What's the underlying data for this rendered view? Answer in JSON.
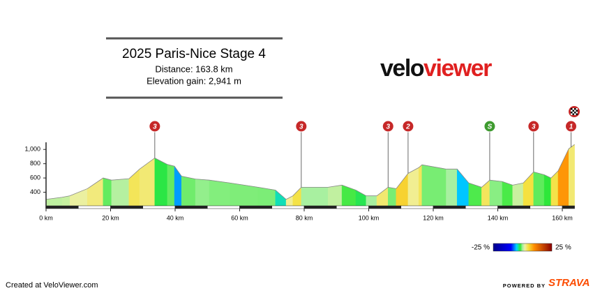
{
  "header": {
    "title": "2025 Paris-Nice Stage 4",
    "distance": "Distance: 163.8 km",
    "gain": "Elevation gain: 2,941 m"
  },
  "logo": {
    "part1": "velo",
    "part2": "viewer"
  },
  "chart_data": {
    "type": "elevation-profile",
    "x": [
      0,
      5,
      7.4,
      12.8,
      17.7,
      20.3,
      25.7,
      29,
      33.7,
      37.6,
      39.8,
      42,
      46.3,
      50.6,
      57,
      65.7,
      71.1,
      74.4,
      76.5,
      79.1,
      87.4,
      91.7,
      96,
      99.2,
      102.5,
      106,
      108.5,
      112.2,
      115.5,
      116.5,
      124,
      127.4,
      131,
      135,
      137.5,
      141.4,
      144.6,
      147.9,
      151.1,
      154.4,
      156.5,
      158.7,
      162,
      163.8
    ],
    "values": [
      300,
      330,
      350,
      450,
      600,
      570,
      590,
      725,
      880,
      790,
      765,
      625,
      585,
      570,
      530,
      470,
      430,
      300,
      350,
      470,
      470,
      500,
      430,
      350,
      350,
      470,
      450,
      665,
      745,
      785,
      725,
      725,
      530,
      470,
      570,
      550,
      500,
      530,
      685,
      645,
      600,
      700,
      1010,
      1070
    ],
    "xlim": [
      0,
      160
    ],
    "xticks": [
      {
        "value": 0,
        "label": "0 km"
      },
      {
        "value": 20,
        "label": "20 km"
      },
      {
        "value": 40,
        "label": "40 km"
      },
      {
        "value": 60,
        "label": "60 km"
      },
      {
        "value": 80,
        "label": "80 km"
      },
      {
        "value": 100,
        "label": "100 km"
      },
      {
        "value": 120,
        "label": "120 km"
      },
      {
        "value": 140,
        "label": "140 km"
      },
      {
        "value": 160,
        "label": "160 km"
      }
    ],
    "ylim": [
      200,
      1100
    ],
    "yticks": [
      400,
      600,
      800,
      {
        "value": 1000,
        "label": "1,000"
      }
    ],
    "climbs": [
      {
        "x": 33.7,
        "label": "3",
        "color": "#c62828"
      },
      {
        "x": 79.1,
        "label": "3",
        "color": "#c62828"
      },
      {
        "x": 106,
        "label": "3",
        "color": "#c62828"
      },
      {
        "x": 112.2,
        "label": "2",
        "color": "#c62828"
      },
      {
        "x": 137.5,
        "label": "S",
        "color": "#3e9b2f"
      },
      {
        "x": 151.1,
        "label": "3",
        "color": "#c62828"
      },
      {
        "x": 162.7,
        "label": "1",
        "color": "#c62828"
      }
    ],
    "gradient_legend": {
      "min": -25,
      "max": 25,
      "min_label": "-25 %",
      "max_label": "25 %",
      "colorscale": [
        [
          -25,
          "#00008b"
        ],
        [
          -10,
          "#0000ff"
        ],
        [
          -5,
          "#00d8ff"
        ],
        [
          -2,
          "#30e830"
        ],
        [
          0,
          "#a8f0a0"
        ],
        [
          2,
          "#f0f0a0"
        ],
        [
          5,
          "#f5e03a"
        ],
        [
          10,
          "#ff8c00"
        ],
        [
          25,
          "#8b0000"
        ]
      ]
    }
  },
  "footer": {
    "created": "Created at VeloViewer.com",
    "powered": "POWERED BY",
    "brand": "STRAVA"
  }
}
